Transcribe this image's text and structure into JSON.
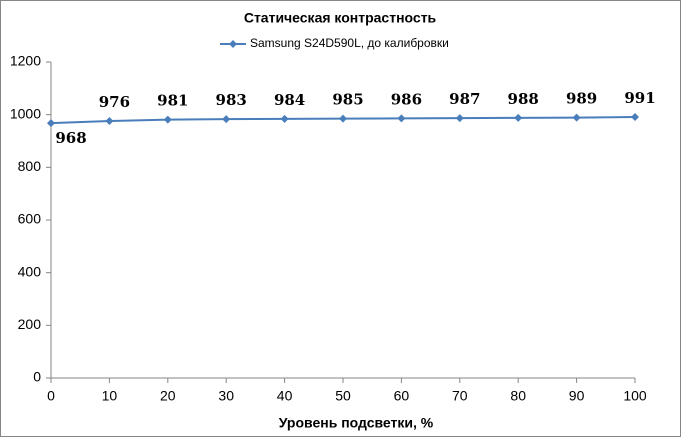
{
  "chart_data": {
    "type": "line",
    "title": "Статическая контрастность",
    "x_label": "Уровень подсветки, %",
    "x": [
      0,
      10,
      20,
      30,
      40,
      50,
      60,
      70,
      80,
      90,
      100
    ],
    "series": [
      {
        "name": "Samsung S24D590L, до калибровки",
        "color": "#4a7ebb",
        "values": [
          968,
          976,
          981,
          983,
          984,
          985,
          986,
          987,
          988,
          989,
          991
        ]
      }
    ],
    "xlim": [
      0,
      100
    ],
    "xticks": [
      0,
      10,
      20,
      30,
      40,
      50,
      60,
      70,
      80,
      90,
      100
    ],
    "ylim": [
      0,
      1200
    ],
    "yticks": [
      0,
      200,
      400,
      600,
      800,
      1000,
      1200
    ],
    "grid": false,
    "legend": "top",
    "data_labels": true
  }
}
